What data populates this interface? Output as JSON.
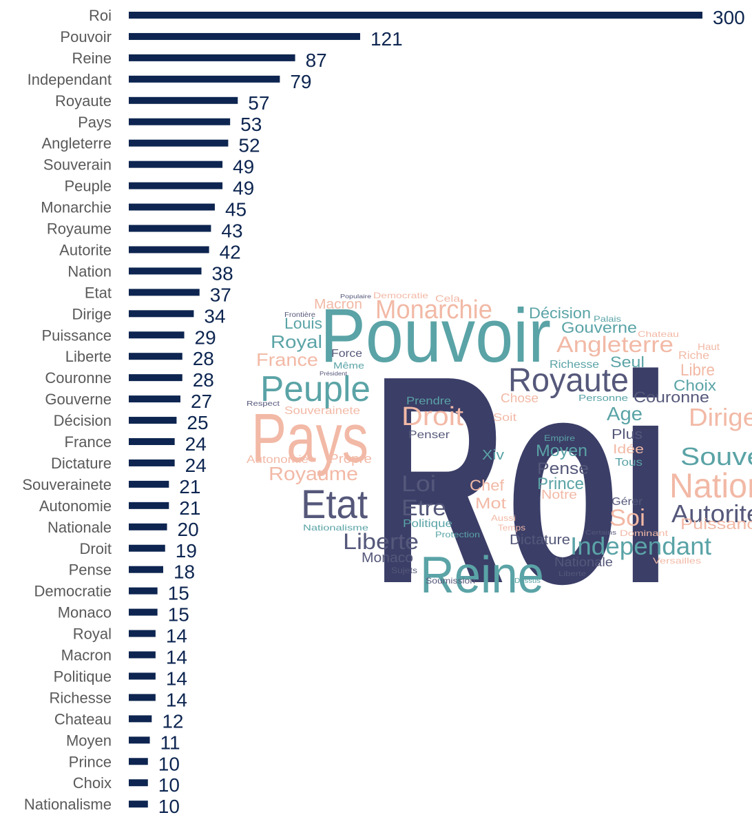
{
  "chart_data": {
    "type": "hbar",
    "categories": [
      "Roi",
      "Pouvoir",
      "Reine",
      "Independant",
      "Royaute",
      "Pays",
      "Angleterre",
      "Souverain",
      "Peuple",
      "Monarchie",
      "Royaume",
      "Autorite",
      "Nation",
      "Etat",
      "Dirige",
      "Puissance",
      "Liberte",
      "Couronne",
      "Gouverne",
      "Décision",
      "France",
      "Dictature",
      "Souverainete",
      "Autonomie",
      "Nationale",
      "Droit",
      "Pense",
      "Democratie",
      "Monaco",
      "Royal",
      "Macron",
      "Politique",
      "Richesse",
      "Chateau",
      "Moyen",
      "Prince",
      "Choix",
      "Nationalisme"
    ],
    "values": [
      300,
      121,
      87,
      79,
      57,
      53,
      52,
      49,
      49,
      45,
      43,
      42,
      38,
      37,
      34,
      29,
      28,
      28,
      27,
      25,
      24,
      24,
      21,
      21,
      20,
      19,
      18,
      15,
      15,
      14,
      14,
      14,
      14,
      12,
      11,
      10,
      10,
      10
    ],
    "color": "#0d2550",
    "xlim": [
      0,
      300
    ]
  },
  "word_cloud": {
    "words": [
      "Roi",
      "Pouvoir",
      "Pays",
      "Reine",
      "Peuple",
      "Etat",
      "Monarchie",
      "Royaute",
      "Independant",
      "Angleterre",
      "Nation",
      "Autorite",
      "Souve",
      "Dirige",
      "Droit",
      "Liberte",
      "Royaume",
      "Loi",
      "Etre",
      "Pense",
      "Moyen",
      "Prince",
      "Age",
      "Couronne",
      "Gouverne",
      "Décision",
      "Royal",
      "Louis",
      "France",
      "Macron",
      "Seul",
      "Libre",
      "Choix",
      "Soi",
      "Puissanc",
      "Dictature",
      "Nationale",
      "Monaco",
      "Chef",
      "Mot",
      "Xiv",
      "Plus",
      "Prendre",
      "Penser",
      "Force",
      "Politique",
      "Chose",
      "Richesse",
      "Souverainete",
      "Autonomie",
      "Propre",
      "Nationalisme",
      "Protection",
      "Sujets",
      "Soumission",
      "Idée",
      "Tous",
      "Gérer",
      "Notre",
      "Empire",
      "Soit",
      "Temps",
      "Aussi",
      "Haut",
      "Riche",
      "Chateau",
      "Palais",
      "Cela",
      "Democratie",
      "Populaire",
      "Frontière",
      "Même",
      "Président",
      "Respect",
      "Personne",
      "Versailles",
      "Liberte",
      "Dessus",
      "Certains",
      "Dominant"
    ]
  }
}
